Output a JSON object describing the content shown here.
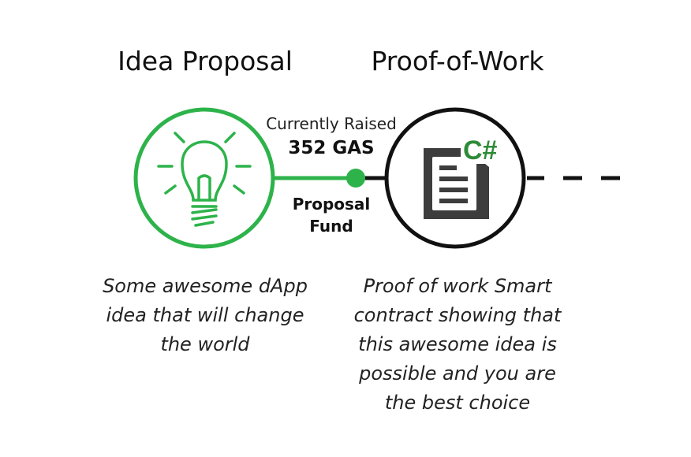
{
  "stages": [
    {
      "title": "Idea Proposal",
      "description_lines": [
        "Some awesome dApp",
        "idea that will change",
        "the world"
      ]
    },
    {
      "title": "Proof-of-Work",
      "description_lines": [
        "Proof of work Smart",
        "contract showing that",
        "this awesome idea is",
        "possible and you are",
        "the best choice"
      ],
      "badge": "C#"
    }
  ],
  "fund": {
    "label_top": "Currently Raised",
    "amount": "352 GAS",
    "label_lines": [
      "Proposal",
      "Fund"
    ]
  },
  "colors": {
    "accent_green": "#2db34a",
    "outline_black": "#111111",
    "doc_gray": "#3d3d3d"
  },
  "icons": {
    "stage1": "lightbulb-icon",
    "stage2": "document-icon"
  }
}
